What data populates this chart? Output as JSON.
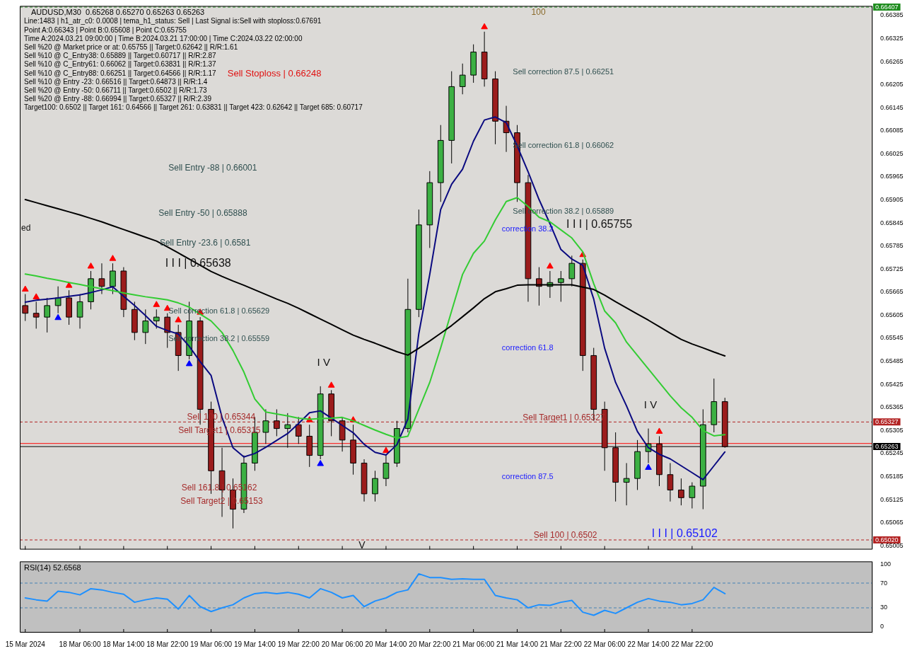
{
  "chart_data": [
    {
      "type": "candlestick",
      "title": "AUDUSD,M30  0.65268 0.65270 0.65263 0.65263",
      "categories": [
        "15 Mar 2024",
        null,
        null,
        null,
        null,
        "18 Mar 06:00",
        null,
        null,
        null,
        "18 Mar 14:00",
        null,
        null,
        null,
        "18 Mar 22:00",
        null,
        null,
        null,
        "19 Mar 06:00",
        null,
        null,
        null,
        "19 Mar 14:00",
        null,
        null,
        null,
        "19 Mar 22:00",
        null,
        null,
        null,
        "20 Mar 06:00",
        null,
        null,
        null,
        "20 Mar 14:00",
        null,
        null,
        null,
        "20 Mar 22:00",
        null,
        null,
        null,
        "21 Mar 06:00",
        null,
        null,
        null,
        "21 Mar 14:00",
        null,
        null,
        null,
        "21 Mar 22:00",
        null,
        null,
        null,
        "22 Mar 06:00",
        null,
        null,
        null,
        "22 Mar 14:00",
        null,
        null,
        null,
        "22 Mar 22:00",
        null,
        null,
        null,
        null,
        null,
        null,
        null,
        null,
        null,
        null,
        null,
        null,
        null,
        null,
        null,
        null
      ],
      "ohlc": [
        [
          0.6563,
          0.6566,
          0.6559,
          0.6561
        ],
        [
          0.6561,
          0.6564,
          0.6557,
          0.656
        ],
        [
          0.656,
          0.6565,
          0.6556,
          0.6563
        ],
        [
          0.6563,
          0.6568,
          0.6561,
          0.6565
        ],
        [
          0.6565,
          0.6567,
          0.6558,
          0.656
        ],
        [
          0.656,
          0.6566,
          0.6557,
          0.6564
        ],
        [
          0.6564,
          0.6572,
          0.6562,
          0.657
        ],
        [
          0.657,
          0.6574,
          0.6566,
          0.6568
        ],
        [
          0.6568,
          0.6574,
          0.6566,
          0.6572
        ],
        [
          0.6572,
          0.6573,
          0.656,
          0.6562
        ],
        [
          0.6562,
          0.6564,
          0.6554,
          0.6556
        ],
        [
          0.6556,
          0.6562,
          0.6553,
          0.6559
        ],
        [
          0.6559,
          0.6562,
          0.6557,
          0.656
        ],
        [
          0.656,
          0.6561,
          0.6552,
          0.6556
        ],
        [
          0.6556,
          0.6558,
          0.6546,
          0.655
        ],
        [
          0.655,
          0.6564,
          0.6549,
          0.6559
        ],
        [
          0.6559,
          0.656,
          0.6532,
          0.6536
        ],
        [
          0.6536,
          0.6538,
          0.6514,
          0.652
        ],
        [
          0.652,
          0.6526,
          0.6508,
          0.6515
        ],
        [
          0.6515,
          0.6518,
          0.6505,
          0.651
        ],
        [
          0.651,
          0.6524,
          0.6509,
          0.6522
        ],
        [
          0.6522,
          0.6534,
          0.652,
          0.653
        ],
        [
          0.653,
          0.6536,
          0.6527,
          0.6533
        ],
        [
          0.6533,
          0.6536,
          0.6529,
          0.6531
        ],
        [
          0.6531,
          0.6535,
          0.6526,
          0.6532
        ],
        [
          0.6532,
          0.6534,
          0.6527,
          0.6529
        ],
        [
          0.6529,
          0.6532,
          0.6521,
          0.6524
        ],
        [
          0.6524,
          0.6542,
          0.6523,
          0.654
        ],
        [
          0.654,
          0.6541,
          0.6529,
          0.6533
        ],
        [
          0.6533,
          0.6534,
          0.6525,
          0.6528
        ],
        [
          0.6528,
          0.6532,
          0.6519,
          0.6522
        ],
        [
          0.6522,
          0.6523,
          0.6512,
          0.6514
        ],
        [
          0.6514,
          0.652,
          0.6512,
          0.6518
        ],
        [
          0.6518,
          0.6524,
          0.6516,
          0.6522
        ],
        [
          0.6522,
          0.6533,
          0.6521,
          0.6531
        ],
        [
          0.6531,
          0.657,
          0.653,
          0.6562
        ],
        [
          0.6562,
          0.6588,
          0.656,
          0.6584
        ],
        [
          0.6584,
          0.6598,
          0.6578,
          0.6595
        ],
        [
          0.6595,
          0.661,
          0.659,
          0.6606
        ],
        [
          0.6606,
          0.6624,
          0.66,
          0.662
        ],
        [
          0.662,
          0.6626,
          0.6618,
          0.6623
        ],
        [
          0.6623,
          0.6631,
          0.6621,
          0.6629
        ],
        [
          0.6629,
          0.66343,
          0.662,
          0.6622
        ],
        [
          0.6622,
          0.6624,
          0.6605,
          0.6611
        ],
        [
          0.6611,
          0.6615,
          0.6603,
          0.6608
        ],
        [
          0.6608,
          0.661,
          0.659,
          0.6595
        ],
        [
          0.6595,
          0.6597,
          0.6564,
          0.657
        ],
        [
          0.657,
          0.6573,
          0.6563,
          0.6568
        ],
        [
          0.6568,
          0.6572,
          0.6565,
          0.6569
        ],
        [
          0.6569,
          0.6572,
          0.6564,
          0.657
        ],
        [
          0.657,
          0.6576,
          0.6568,
          0.6574
        ],
        [
          0.6574,
          0.6575,
          0.6546,
          0.655
        ],
        [
          0.655,
          0.6552,
          0.6533,
          0.6536
        ],
        [
          0.6536,
          0.6538,
          0.652,
          0.6526
        ],
        [
          0.6526,
          0.653,
          0.6512,
          0.6517
        ],
        [
          0.6517,
          0.6522,
          0.6511,
          0.6518
        ],
        [
          0.6518,
          0.6528,
          0.6515,
          0.6525
        ],
        [
          0.6525,
          0.6531,
          0.6522,
          0.6527
        ],
        [
          0.6527,
          0.6529,
          0.6516,
          0.6519
        ],
        [
          0.6519,
          0.6522,
          0.6512,
          0.6515
        ],
        [
          0.6515,
          0.6518,
          0.6511,
          0.6513
        ],
        [
          0.6513,
          0.6517,
          0.65102,
          0.6516
        ],
        [
          0.6516,
          0.6536,
          0.651,
          0.6532
        ],
        [
          0.6532,
          0.6544,
          0.653,
          0.6538
        ],
        [
          0.6538,
          0.6539,
          0.6526,
          0.65263
        ],
        null,
        null,
        null,
        null,
        null,
        null,
        null,
        null,
        null,
        null,
        null,
        null,
        null
      ],
      "series": [
        {
          "type": "line",
          "color": "#000000",
          "marker": "none",
          "values": [
            0.65906,
            0.65898,
            0.6589,
            0.65882,
            0.65874,
            0.65866,
            0.65857,
            0.65848,
            0.65838,
            0.65828,
            0.65818,
            0.65808,
            0.65798,
            0.65783,
            0.65767,
            0.65751,
            0.65735,
            0.65719,
            0.65706,
            0.65694,
            0.65683,
            0.65671,
            0.65659,
            0.65647,
            0.65636,
            0.65623,
            0.65609,
            0.65595,
            0.65581,
            0.65567,
            0.65553,
            0.65542,
            0.65532,
            0.65521,
            0.6551,
            0.65501,
            0.65519,
            0.65538,
            0.65558,
            0.65578,
            0.65601,
            0.65624,
            0.65648,
            0.65666,
            0.65674,
            0.65683,
            0.65684,
            0.65684,
            0.65684,
            0.65684,
            0.65684,
            0.65678,
            0.65672,
            0.65657,
            0.6564,
            0.65624,
            0.65608,
            0.65592,
            0.65575,
            0.65558,
            0.65542,
            0.6553,
            0.6552,
            0.65509,
            0.65499,
            null,
            null,
            null,
            null,
            null,
            null,
            null,
            null,
            null,
            null,
            null,
            null,
            null
          ]
        },
        {
          "type": "line",
          "color": "#33cc33",
          "marker": "none",
          "values": [
            0.65712,
            0.65707,
            0.65701,
            0.65696,
            0.6569,
            0.65685,
            0.65679,
            0.65674,
            0.65669,
            0.65663,
            0.65658,
            0.65653,
            0.65649,
            0.65645,
            0.65637,
            0.65626,
            0.65608,
            0.6559,
            0.6556,
            0.65513,
            0.65457,
            0.65387,
            0.65353,
            0.65348,
            0.65343,
            0.65337,
            0.65334,
            0.65336,
            0.65337,
            0.65339,
            0.6533,
            0.65318,
            0.65306,
            0.65295,
            0.65285,
            0.6529,
            0.6536,
            0.6543,
            0.6552,
            0.65616,
            0.65711,
            0.65766,
            0.65798,
            0.65853,
            0.65901,
            0.65911,
            0.65888,
            0.6586,
            0.65848,
            0.65827,
            0.65806,
            0.6577,
            0.65687,
            0.65616,
            0.65585,
            0.65535,
            0.655,
            0.65465,
            0.6543,
            0.65395,
            0.65364,
            0.65339,
            0.65305,
            0.65291,
            0.65294,
            null,
            null,
            null,
            null,
            null,
            null,
            null,
            null,
            null,
            null,
            null,
            null,
            null
          ]
        },
        {
          "type": "line",
          "color": "#0a0a80",
          "marker": "none",
          "values": [
            0.65639,
            0.65644,
            0.65647,
            0.6565,
            0.65654,
            0.65658,
            0.65664,
            0.65671,
            0.65679,
            0.65654,
            0.6563,
            0.65604,
            0.65576,
            0.65565,
            0.65556,
            0.65524,
            0.65484,
            0.65448,
            0.65339,
            0.6526,
            0.65236,
            0.65245,
            0.65261,
            0.65279,
            0.65297,
            0.65323,
            0.65351,
            0.65356,
            0.65337,
            0.65318,
            0.65299,
            0.65269,
            0.65248,
            0.65241,
            0.65268,
            0.65335,
            0.65557,
            0.65711,
            0.6588,
            0.65946,
            0.65985,
            0.66058,
            0.66113,
            0.66121,
            0.66106,
            0.66046,
            0.65978,
            0.65906,
            0.65843,
            0.65776,
            0.65751,
            0.65735,
            0.65647,
            0.65519,
            0.6543,
            0.65369,
            0.65302,
            0.6526,
            0.65243,
            0.65231,
            0.65213,
            0.65195,
            0.65177,
            0.65213,
            0.65249,
            null,
            null,
            null,
            null,
            null,
            null,
            null,
            null,
            null,
            null,
            null,
            null,
            null
          ]
        },
        {
          "type": "scatter",
          "color": "#ff0000",
          "marker": "triangle",
          "values": [
            0.65672,
            0.65652,
            null,
            null,
            0.65682,
            null,
            0.65732,
            null,
            0.65752,
            null,
            null,
            null,
            0.65632,
            0.65622,
            0.65592,
            null,
            0.65612,
            null,
            null,
            null,
            null,
            null,
            null,
            null,
            null,
            null,
            0.65332,
            null,
            0.65422,
            null,
            0.65332,
            null,
            null,
            0.65252,
            null,
            null,
            null,
            null,
            null,
            null,
            null,
            null,
            0.66355,
            null,
            null,
            null,
            null,
            null,
            0.65732,
            null,
            null,
            0.65762,
            null,
            null,
            null,
            null,
            null,
            null,
            0.65302,
            null,
            null,
            null,
            null,
            null,
            null,
            null,
            null,
            null,
            null,
            null,
            null,
            null,
            null,
            null,
            null,
            null,
            null,
            null
          ]
        },
        {
          "type": "scatter",
          "color": "#0000ff",
          "marker": "triangle",
          "values": [
            null,
            null,
            null,
            0.65598,
            null,
            null,
            null,
            null,
            null,
            null,
            null,
            null,
            null,
            null,
            null,
            0.65478,
            null,
            null,
            null,
            null,
            null,
            null,
            null,
            null,
            null,
            null,
            null,
            0.65218,
            null,
            null,
            null,
            null,
            null,
            null,
            null,
            null,
            null,
            null,
            null,
            null,
            null,
            null,
            null,
            null,
            null,
            null,
            null,
            null,
            null,
            null,
            null,
            null,
            null,
            null,
            null,
            null,
            null,
            0.65208,
            null,
            null,
            null,
            null,
            null,
            null,
            null,
            null,
            null,
            null,
            null,
            null,
            null,
            null,
            null,
            null,
            null,
            null,
            null,
            null
          ]
        }
      ],
      "ylim": [
        0.64995,
        0.6641
      ],
      "yticks": [
        0.66385,
        0.66325,
        0.66265,
        0.66205,
        0.66145,
        0.66085,
        0.66025,
        0.65965,
        0.65905,
        0.65845,
        0.65785,
        0.65725,
        0.65665,
        0.65605,
        0.65545,
        0.65485,
        0.65425,
        0.65365,
        0.65305,
        0.65245,
        0.65185,
        0.65125,
        0.65065,
        0.65005
      ],
      "tick_labels": "y",
      "ref_lines": [
        {
          "axis": "y",
          "value": 0.66407,
          "label": "0.66407",
          "color": "#1e8c1e",
          "line_style": "dashed"
        },
        {
          "axis": "y",
          "value": 0.65327,
          "label": "0.65327",
          "color": "#b22222",
          "line_style": "dashed"
        },
        {
          "axis": "y",
          "value": 0.65271,
          "color": "#ff0000",
          "line_style": "solid"
        },
        {
          "axis": "y",
          "value": 0.65263,
          "label": "0.65263",
          "color": "#000000",
          "line_style": "solid"
        },
        {
          "axis": "y",
          "value": 0.6502,
          "label": "0.65020",
          "color": "#b22222",
          "line_style": "dashed"
        }
      ],
      "annotations": [
        "Line:1483 | h1_atr_c0: 0.0008 | tema_h1_status: Sell | Last Signal is:Sell with stoploss:0.67691",
        "Point A:0.66343 | Point B:0.65608 | Point C:0.65755",
        "Time A:2024.03.21 09:00:00 | Time B:2024.03.21 17:00:00 | Time C:2024.03.22 02:00:00",
        "Sell %20 @ Market price or at: 0.65755 || Target:0.62642 || R/R:1.61",
        "Sell %10 @ C_Entry38: 0.65889 || Target:0.60717 || R/R:2.87",
        "Sell %10 @ C_Entry61: 0.66062 || Target:0.63831 || R/R:1.37",
        "Sell %10 @ C_Entry88: 0.66251 || Target:0.64566 || R/R:1.17",
        "Sell %10 @ Entry -23: 0.66516 || Target:0.64873 || R/R:1.4",
        "Sell %20 @ Entry -50: 0.66711 || Target:0.6502 || R/R:1.73",
        "Sell %20 @ Entry -88: 0.66994 || Target:0.65327 || R/R:2.39",
        "Target100: 0.6502 || Target 161: 0.64566 || Target 261: 0.63831 || Target 423: 0.62642 || Target 685: 0.60717",
        "Sell Stoploss | 0.66248",
        "Sell Entry -88 | 0.66001",
        "Sell Entry -50 | 0.65888",
        "Sell Entry -23.6 | 0.6581",
        "I I I | 0.65638",
        "Sell correction 61.8 | 0.65629",
        "Sell correction 38.2 | 0.65559",
        "I V",
        "Sell 100 | 0.65344",
        "Sell Target1 | 0.65315",
        "Sell 161.8 | 0.65162",
        "Sell Target2 | 0.65153",
        "V",
        "Sell correction 87.5 | 0.66251",
        "Sell correction 61.8 | 0.66062",
        "Sell correction 38.2 | 0.65889",
        "I I I | 0.65755",
        "correction 38.2",
        "correction 61.8",
        "correction 87.5",
        {
          "text": "Sell Target1 | 0.65327",
          "y": 0.65327
        },
        "I V",
        "I I I | 0.65102",
        {
          "text": "Sell 100 | 0.6502",
          "y": 0.6502
        },
        "100",
        "ed"
      ]
    },
    {
      "type": "line",
      "title": "RSI(14) 52.6568",
      "series": [
        {
          "color": "#1e90ff",
          "values": [
            46,
            43,
            41,
            57,
            55,
            51,
            61,
            59,
            55,
            52,
            39,
            43,
            46,
            44,
            28,
            50,
            32,
            24,
            30,
            35,
            46,
            53,
            55,
            53,
            55,
            52,
            46,
            61,
            55,
            46,
            50,
            32,
            41,
            46,
            55,
            59,
            85,
            79,
            79,
            76,
            77,
            76,
            76,
            50,
            46,
            43,
            30,
            35,
            34,
            39,
            42,
            23,
            18,
            26,
            21,
            30,
            39,
            45,
            41,
            39,
            35,
            37,
            43,
            63,
            53,
            null,
            null,
            null,
            null,
            null,
            null,
            null,
            null,
            null,
            null,
            null,
            null,
            null
          ]
        }
      ],
      "ylim": [
        -10,
        105
      ],
      "yticks": [
        0,
        30,
        70,
        100
      ],
      "ref_lines": [
        {
          "axis": "y",
          "value": 70,
          "color": "#4682b4",
          "line_style": "dashed"
        },
        {
          "axis": "y",
          "value": 30,
          "color": "#4682b4",
          "line_style": "dashed"
        }
      ]
    }
  ]
}
